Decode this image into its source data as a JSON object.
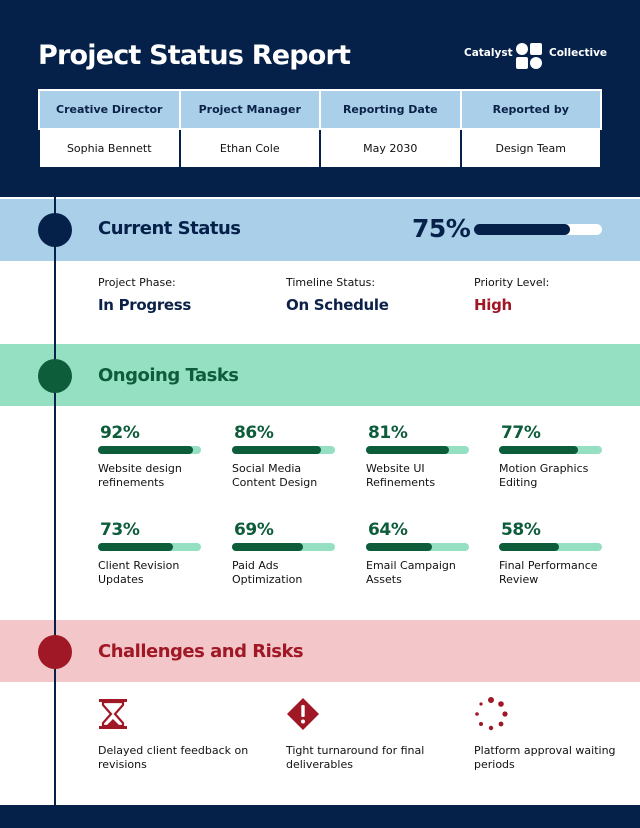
{
  "header": {
    "title": "Project Status Report",
    "brand_left": "Catalyst",
    "brand_right": "Collective",
    "columns": [
      "Creative Director",
      "Project Manager",
      "Reporting Date",
      "Reported by"
    ],
    "values": [
      "Sophia Bennett",
      "Ethan Cole",
      "May 2030",
      "Design Team"
    ]
  },
  "current_status": {
    "heading": "Current Status",
    "overall_percent_text": "75%",
    "overall_progress": 0.75,
    "items": [
      {
        "label": "Project Phase:",
        "value": "In Progress",
        "color": "#0b2148"
      },
      {
        "label": "Timeline Status:",
        "value": "On Schedule",
        "color": "#0b2148"
      },
      {
        "label": "Priority Level:",
        "value": "High",
        "color": "#a01725"
      }
    ]
  },
  "tasks": {
    "heading": "Ongoing Tasks",
    "items": [
      {
        "percent_text": "92%",
        "progress": 0.92,
        "label": "Website design refinements"
      },
      {
        "percent_text": "86%",
        "progress": 0.86,
        "label": "Social Media Content Design"
      },
      {
        "percent_text": "81%",
        "progress": 0.81,
        "label": "Website UI Refinements"
      },
      {
        "percent_text": "77%",
        "progress": 0.77,
        "label": "Motion Graphics Editing"
      },
      {
        "percent_text": "73%",
        "progress": 0.73,
        "label": "Client Revision Updates"
      },
      {
        "percent_text": "69%",
        "progress": 0.69,
        "label": "Paid Ads Optimization"
      },
      {
        "percent_text": "64%",
        "progress": 0.64,
        "label": "Email Campaign Assets"
      },
      {
        "percent_text": "58%",
        "progress": 0.58,
        "label": "Final Performance Review"
      }
    ]
  },
  "risks": {
    "heading": "Challenges and Risks",
    "items": [
      {
        "icon": "hourglass-icon",
        "label": "Delayed client feedback on revisions"
      },
      {
        "icon": "warning-icon",
        "label": "Tight turnaround for final deliverables"
      },
      {
        "icon": "loading-icon",
        "label": "Platform approval waiting periods"
      }
    ]
  },
  "colors": {
    "navy": "#062149",
    "light_blue": "#a9cfe9",
    "mint": "#95dfc3",
    "dark_green": "#0d5c3a",
    "pink": "#f3c6ca",
    "crimson": "#a01725"
  }
}
